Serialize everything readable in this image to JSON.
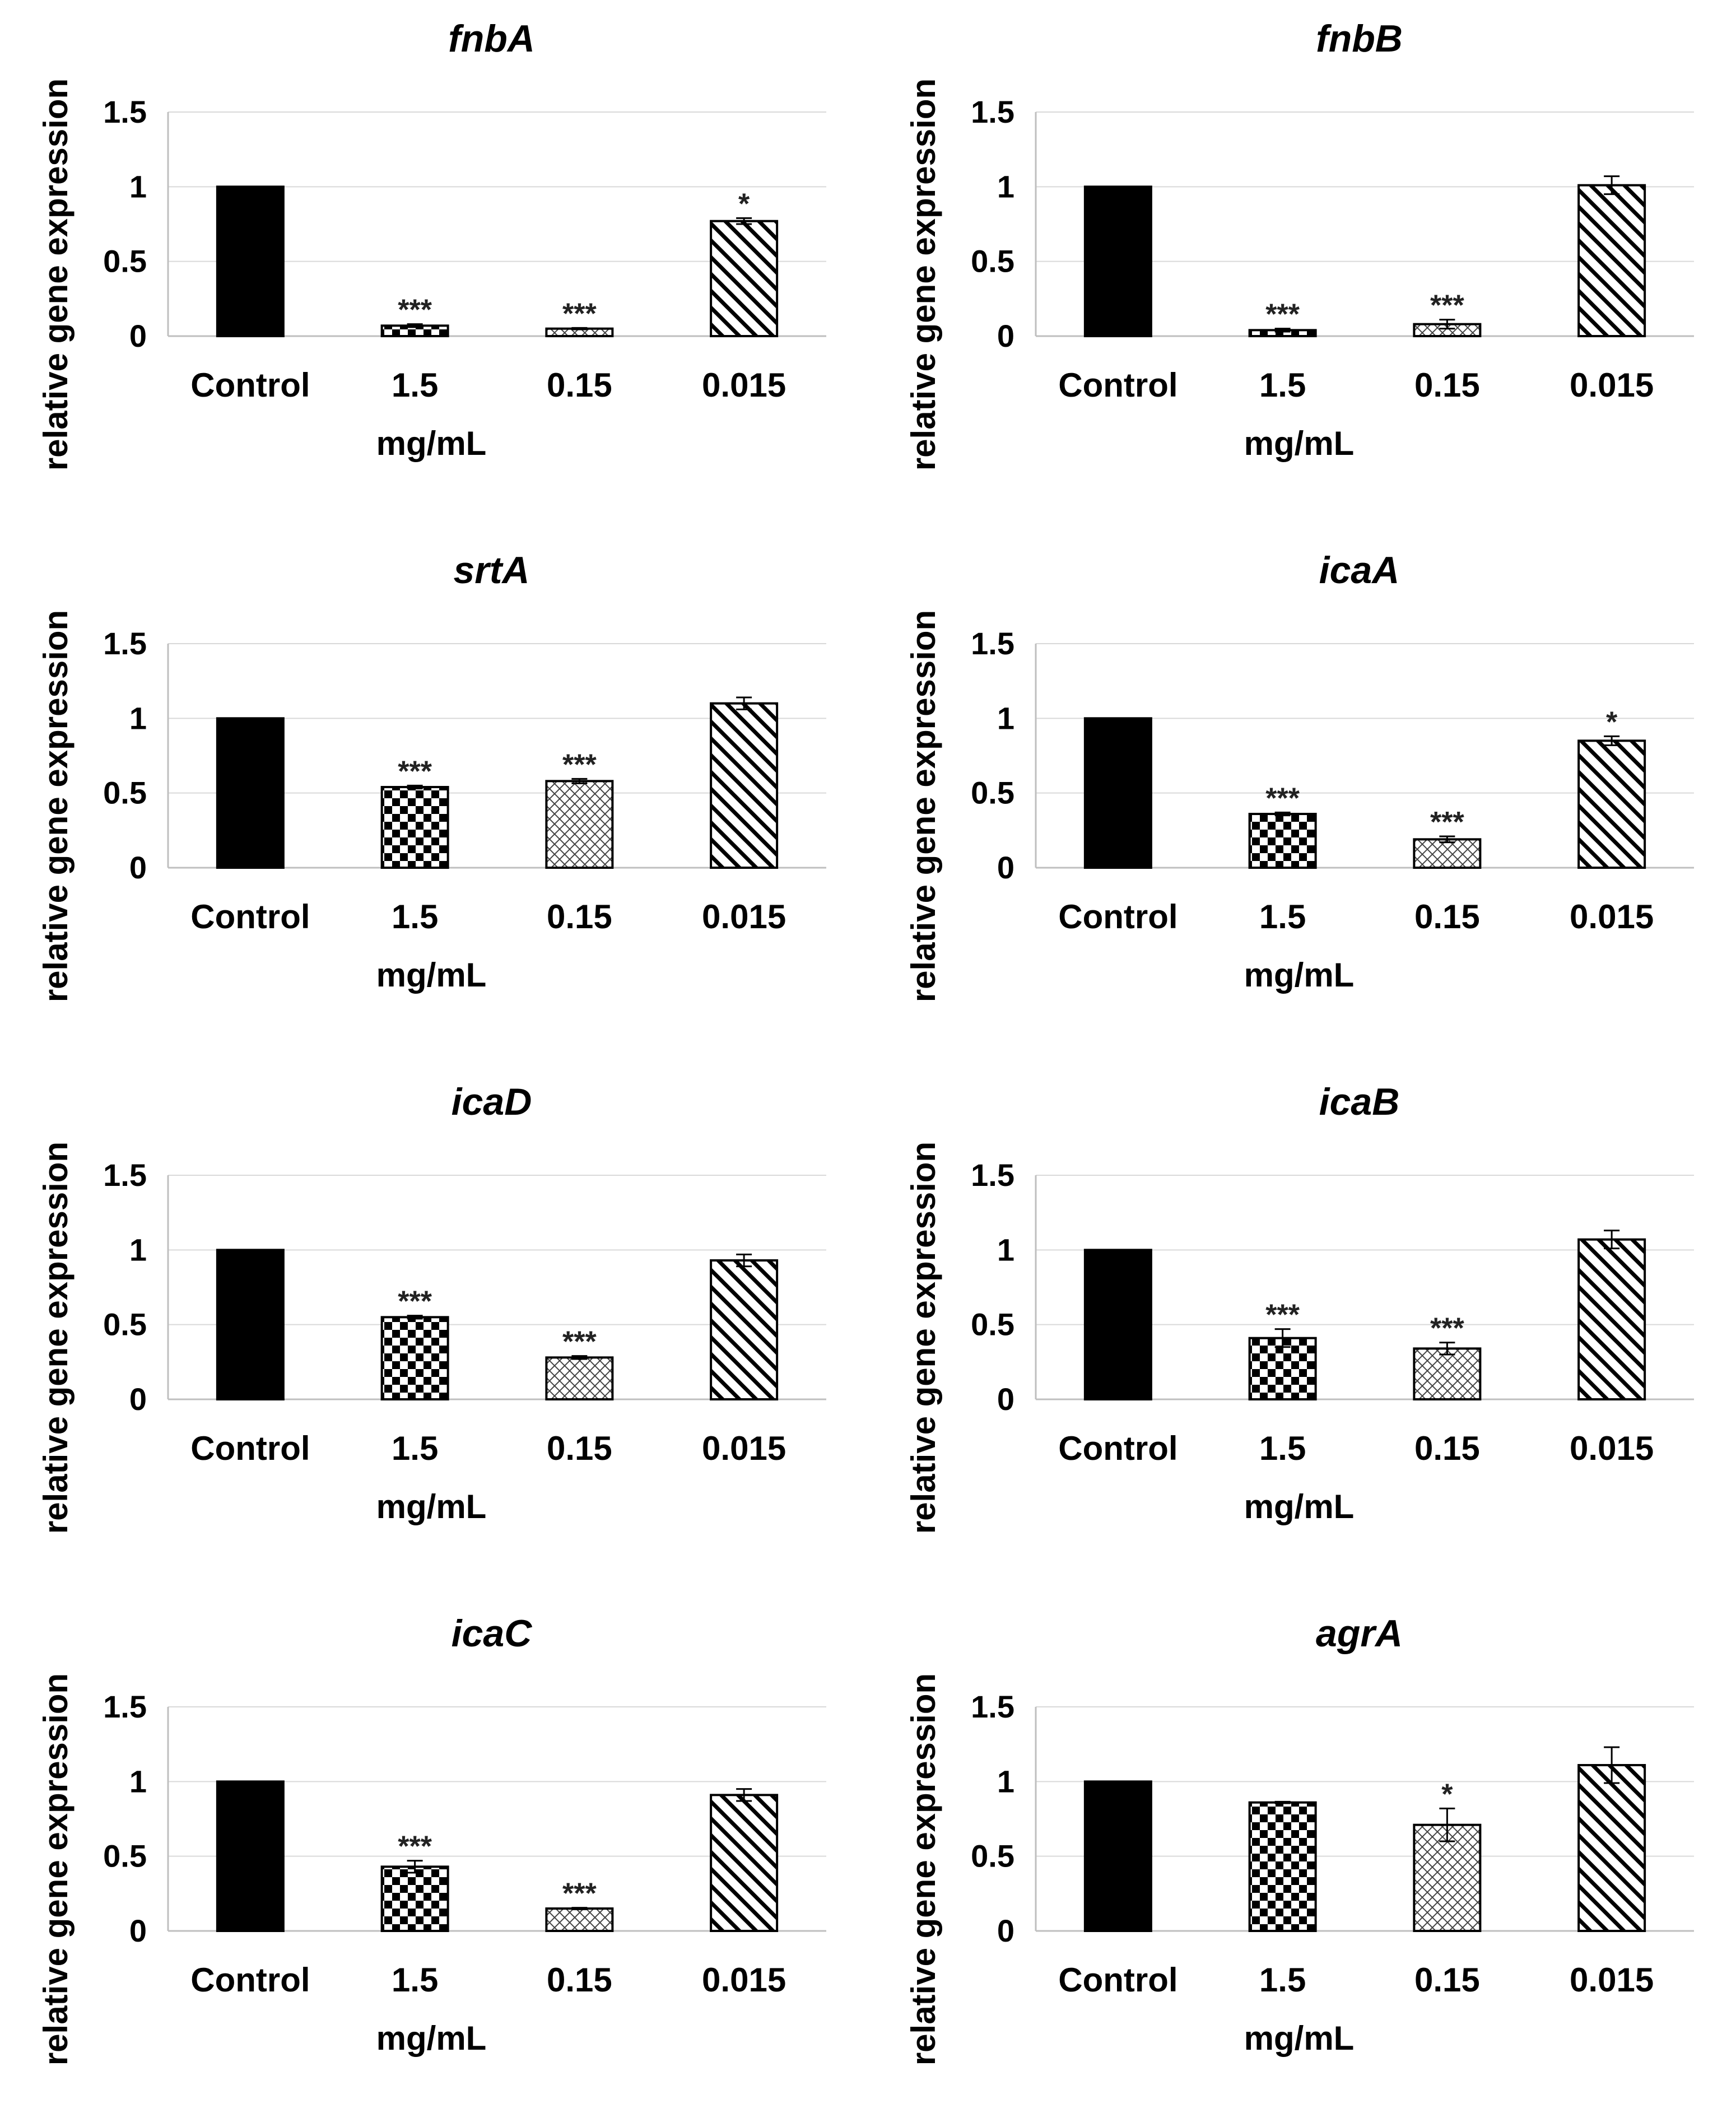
{
  "chart_data": [
    {
      "type": "bar",
      "title": "fnbA",
      "categories": [
        "Control",
        "1.5",
        "0.15",
        "0.015"
      ],
      "values": [
        1.0,
        0.07,
        0.05,
        0.77
      ],
      "errors": [
        0.0,
        0.01,
        0.005,
        0.02
      ],
      "significance": [
        "",
        "***",
        "***",
        "*"
      ],
      "xlabel": "mg/mL",
      "ylabel": "relative gene expression",
      "ylim": [
        0,
        1.5
      ],
      "yticks": [
        "0",
        "0.5",
        "1",
        "1.5"
      ],
      "grid": true
    },
    {
      "type": "bar",
      "title": "fnbB",
      "categories": [
        "Control",
        "1.5",
        "0.15",
        "0.015"
      ],
      "values": [
        1.0,
        0.04,
        0.08,
        1.01
      ],
      "errors": [
        0.0,
        0.01,
        0.03,
        0.06
      ],
      "significance": [
        "",
        "***",
        "***",
        ""
      ],
      "xlabel": "mg/mL",
      "ylabel": "relative gene expression",
      "ylim": [
        0,
        1.5
      ],
      "yticks": [
        "0",
        "0.5",
        "1",
        "1.5"
      ],
      "grid": true
    },
    {
      "type": "bar",
      "title": "srtA",
      "categories": [
        "Control",
        "1.5",
        "0.15",
        "0.015"
      ],
      "values": [
        1.0,
        0.54,
        0.58,
        1.1
      ],
      "errors": [
        0.0,
        0.01,
        0.015,
        0.04
      ],
      "significance": [
        "",
        "***",
        "***",
        ""
      ],
      "xlabel": "mg/mL",
      "ylabel": "relative gene expression",
      "ylim": [
        0,
        1.5
      ],
      "yticks": [
        "0",
        "0.5",
        "1",
        "1.5"
      ],
      "grid": true
    },
    {
      "type": "bar",
      "title": "icaA",
      "categories": [
        "Control",
        "1.5",
        "0.15",
        "0.015"
      ],
      "values": [
        1.0,
        0.36,
        0.19,
        0.85
      ],
      "errors": [
        0.0,
        0.01,
        0.02,
        0.03
      ],
      "significance": [
        "",
        "***",
        "***",
        "*"
      ],
      "xlabel": "mg/mL",
      "ylabel": "relative gene expression",
      "ylim": [
        0,
        1.5
      ],
      "yticks": [
        "0",
        "0.5",
        "1",
        "1.5"
      ],
      "grid": true
    },
    {
      "type": "bar",
      "title": "icaD",
      "categories": [
        "Control",
        "1.5",
        "0.15",
        "0.015"
      ],
      "values": [
        1.0,
        0.55,
        0.28,
        0.93
      ],
      "errors": [
        0.0,
        0.01,
        0.01,
        0.04
      ],
      "significance": [
        "",
        "***",
        "***",
        ""
      ],
      "xlabel": "mg/mL",
      "ylabel": "relative gene expression",
      "ylim": [
        0,
        1.5
      ],
      "yticks": [
        "0",
        "0.5",
        "1",
        "1.5"
      ],
      "grid": true
    },
    {
      "type": "bar",
      "title": "icaB",
      "categories": [
        "Control",
        "1.5",
        "0.15",
        "0.015"
      ],
      "values": [
        1.0,
        0.41,
        0.34,
        1.07
      ],
      "errors": [
        0.0,
        0.06,
        0.04,
        0.06
      ],
      "significance": [
        "",
        "***",
        "***",
        ""
      ],
      "xlabel": "mg/mL",
      "ylabel": "relative gene expression",
      "ylim": [
        0,
        1.5
      ],
      "yticks": [
        "0",
        "0.5",
        "1",
        "1.5"
      ],
      "grid": true
    },
    {
      "type": "bar",
      "title": "icaC",
      "categories": [
        "Control",
        "1.5",
        "0.15",
        "0.015"
      ],
      "values": [
        1.0,
        0.43,
        0.15,
        0.91
      ],
      "errors": [
        0.0,
        0.04,
        0.005,
        0.04
      ],
      "significance": [
        "",
        "***",
        "***",
        ""
      ],
      "xlabel": "mg/mL",
      "ylabel": "relative gene expression",
      "ylim": [
        0,
        1.5
      ],
      "yticks": [
        "0",
        "0.5",
        "1",
        "1.5"
      ],
      "grid": true
    },
    {
      "type": "bar",
      "title": "agrA",
      "categories": [
        "Control",
        "1.5",
        "0.15",
        "0.015"
      ],
      "values": [
        1.0,
        0.86,
        0.71,
        1.11
      ],
      "errors": [
        0.0,
        0.005,
        0.11,
        0.12
      ],
      "significance": [
        "",
        "",
        "*",
        ""
      ],
      "xlabel": "mg/mL",
      "ylabel": "relative gene expression",
      "ylim": [
        0,
        1.5
      ],
      "yticks": [
        "0",
        "0.5",
        "1",
        "1.5"
      ],
      "grid": true
    }
  ]
}
